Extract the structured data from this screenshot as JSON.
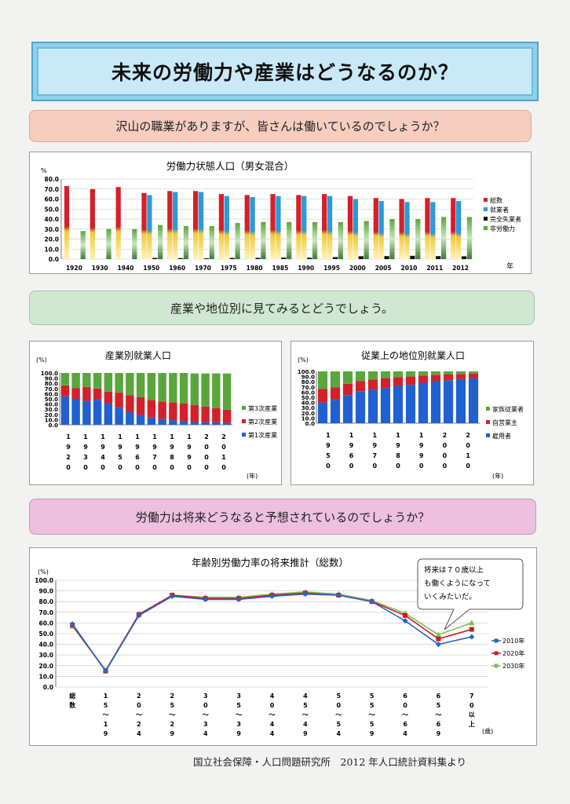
{
  "title": "未来の労働力や産業はどうなるのか？",
  "banners": {
    "b1": "沢山の職業がありますが、皆さんは働いているのでしょうか？",
    "b2": "産業や地位別に見てみるとどうでしょう。",
    "b3": "労働力は将来どうなると予想されているのでしょうか？"
  },
  "callout": "将来は７０歳以上も働くようになっていくみたいだ。",
  "footer": "国立社会保障・人口問題研究所　2012 年人口統計資料集より",
  "colors": {
    "red": "#d4202a",
    "blue": "#2a9ad8",
    "yellow": "#f1c93b",
    "green": "#59a63c",
    "darkgreen": "#3f7a33",
    "black": "#111111",
    "lineblue": "#2d62c4",
    "linered": "#c81f24",
    "linegreen": "#7fbf5b"
  },
  "chart_data": [
    {
      "id": "labor_force",
      "type": "bar",
      "title": "労働力状態人口（男女混合）",
      "ylabel": "%",
      "xunit": "年",
      "ylim": [
        0,
        80
      ],
      "yticks": [
        "0.0",
        "10.0",
        "20.0",
        "30.0",
        "40.0",
        "50.0",
        "60.0",
        "70.0",
        "80.0"
      ],
      "grid": true,
      "legend_position": "right",
      "categories": [
        "1920",
        "1930",
        "1940",
        "1950",
        "1960",
        "1970",
        "1975",
        "1980",
        "1985",
        "1990",
        "1995",
        "2000",
        "2005",
        "2010",
        "2011",
        "2012"
      ],
      "series": [
        {
          "name": "総数",
          "values": [
            73,
            70,
            72,
            66,
            68,
            68,
            65,
            64,
            65,
            64,
            65,
            63,
            61,
            60,
            61,
            61
          ]
        },
        {
          "name": "就業者",
          "values": [
            null,
            null,
            null,
            64,
            67,
            67,
            63,
            62,
            63,
            63,
            63,
            60,
            58,
            57,
            57,
            58
          ]
        },
        {
          "name": "完全失業者",
          "values": [
            null,
            null,
            null,
            1.2,
            1.0,
            0.8,
            1.2,
            1.3,
            1.6,
            1.4,
            2.0,
            2.9,
            3.0,
            3.3,
            3.0,
            2.8
          ]
        },
        {
          "name": "非労働力",
          "values": [
            28,
            30,
            30,
            34,
            33,
            33,
            36,
            37,
            37,
            37,
            37,
            38,
            40,
            40,
            42,
            42
          ]
        }
      ]
    },
    {
      "id": "industry",
      "type": "bar",
      "title": "産業別就業人口",
      "ylabel": "(%)",
      "xunit": "(年)",
      "ylim": [
        0,
        100
      ],
      "yticks": [
        "0.0",
        "10.0",
        "20.0",
        "30.0",
        "40.0",
        "50.0",
        "60.0",
        "70.0",
        "80.0",
        "90.0",
        "100.0"
      ],
      "legend_position": "right",
      "categories": [
        "1920",
        "1930",
        "1940",
        "1950",
        "1955",
        "1960",
        "1965",
        "1970",
        "1975",
        "1980",
        "1985",
        "1990",
        "1995",
        "2000",
        "2005",
        "2010"
      ],
      "x_tick_labels": [
        "1920",
        "1930",
        "1940",
        "1950",
        "1960",
        "1970",
        "1980",
        "1990",
        "2000",
        "2010"
      ],
      "series": [
        {
          "name": "第3次産業",
          "values": [
            24,
            29,
            27,
            30,
            36,
            38,
            43,
            47,
            52,
            55,
            57,
            59,
            61,
            64,
            67,
            70
          ]
        },
        {
          "name": "第2次産業",
          "values": [
            21,
            21,
            27,
            22,
            23,
            29,
            32,
            34,
            34,
            34,
            34,
            34,
            32,
            30,
            27,
            25
          ]
        },
        {
          "name": "第1次産業",
          "values": [
            55,
            50,
            46,
            48,
            41,
            33,
            25,
            19,
            14,
            11,
            9,
            7,
            6,
            5,
            5,
            4
          ]
        }
      ]
    },
    {
      "id": "status",
      "type": "bar",
      "title": "従業上の地位別就業人口",
      "ylabel": "(%)",
      "xunit": "(年)",
      "ylim": [
        0,
        100
      ],
      "yticks": [
        "0.0",
        "10.0",
        "20.0",
        "30.0",
        "40.0",
        "50.0",
        "60.0",
        "70.0",
        "80.0",
        "90.0",
        "100.0"
      ],
      "legend_position": "right",
      "categories": [
        "1950",
        "1955",
        "1960",
        "1965",
        "1970",
        "1975",
        "1980",
        "1985",
        "1990",
        "1995",
        "2000",
        "2005",
        "2010"
      ],
      "x_tick_labels": [
        "1950",
        "1960",
        "1970",
        "1980",
        "1990",
        "2000",
        "2010"
      ],
      "series": [
        {
          "name": "家族従業者",
          "values": [
            34,
            31,
            24,
            19,
            16,
            13,
            11,
            10,
            8,
            7,
            6,
            5,
            4
          ]
        },
        {
          "name": "自営業主",
          "values": [
            26,
            24,
            22,
            20,
            19,
            19,
            17,
            16,
            14,
            12,
            11,
            10,
            9
          ]
        },
        {
          "name": "雇用者",
          "values": [
            40,
            45,
            54,
            61,
            65,
            68,
            72,
            74,
            78,
            81,
            83,
            85,
            87
          ]
        }
      ]
    },
    {
      "id": "participation_projection",
      "type": "line",
      "title": "年齢別労働力率の将来推計（総数）",
      "ylabel": "(%)",
      "xunit": "(歳)",
      "ylim": [
        0,
        100
      ],
      "yticks": [
        "0.0",
        "10.0",
        "20.0",
        "30.0",
        "40.0",
        "50.0",
        "60.0",
        "70.0",
        "80.0",
        "90.0",
        "100.0"
      ],
      "grid": true,
      "legend_position": "right",
      "categories": [
        "総数",
        "15〜19",
        "20〜24",
        "25〜29",
        "30〜34",
        "35〜39",
        "40〜44",
        "45〜49",
        "50〜54",
        "55〜59",
        "60〜64",
        "65〜69",
        "70以上"
      ],
      "category_ticks": [
        [
          "総",
          "数"
        ],
        [
          "1",
          "5",
          "〜",
          "1",
          "9"
        ],
        [
          "2",
          "0",
          "〜",
          "2",
          "4"
        ],
        [
          "2",
          "5",
          "〜",
          "2",
          "9"
        ],
        [
          "3",
          "0",
          "〜",
          "3",
          "4"
        ],
        [
          "3",
          "5",
          "〜",
          "3",
          "9"
        ],
        [
          "4",
          "0",
          "〜",
          "4",
          "4"
        ],
        [
          "4",
          "5",
          "〜",
          "4",
          "9"
        ],
        [
          "5",
          "0",
          "〜",
          "5",
          "4"
        ],
        [
          "5",
          "5",
          "〜",
          "5",
          "9"
        ],
        [
          "6",
          "0",
          "〜",
          "6",
          "4"
        ],
        [
          "6",
          "5",
          "〜",
          "6",
          "9"
        ],
        [
          "7",
          "0",
          "以",
          "上"
        ]
      ],
      "series": [
        {
          "name": "2010年",
          "values": [
            59,
            15,
            67,
            85,
            82,
            82,
            85,
            87,
            86,
            80,
            62,
            40,
            47
          ]
        },
        {
          "name": "2020年",
          "values": [
            58,
            15,
            68,
            86,
            83,
            83,
            86,
            88,
            86,
            80,
            67,
            45,
            54
          ]
        },
        {
          "name": "2030年",
          "values": [
            57,
            16,
            68,
            86,
            84,
            84,
            87,
            89,
            87,
            81,
            69,
            49,
            60
          ]
        }
      ]
    }
  ]
}
